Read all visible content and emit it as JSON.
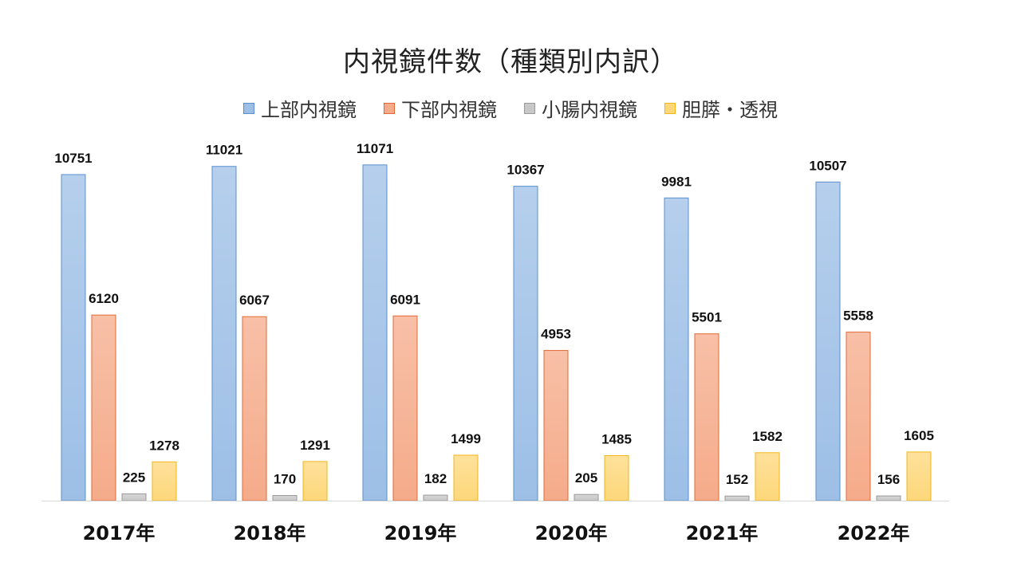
{
  "chart_data": {
    "type": "bar",
    "title": "内視鏡件数（種類別内訳）",
    "xlabel": "",
    "ylabel": "",
    "categories": [
      "2017年",
      "2018年",
      "2019年",
      "2020年",
      "2021年",
      "2022年"
    ],
    "series": [
      {
        "name": "上部内視鏡",
        "values": [
          10751,
          11021,
          11071,
          10367,
          9981,
          10507
        ],
        "color": "#9dbfe6",
        "stroke": "#5b8fcf"
      },
      {
        "name": "下部内視鏡",
        "values": [
          6120,
          6067,
          6091,
          4953,
          5501,
          5558
        ],
        "color": "#f5ab8a",
        "stroke": "#e06a36"
      },
      {
        "name": "小腸内視鏡",
        "values": [
          225,
          170,
          182,
          205,
          152,
          156
        ],
        "color": "#c8c8c8",
        "stroke": "#9a9a9a"
      },
      {
        "name": "胆膵・透視",
        "values": [
          1278,
          1291,
          1499,
          1485,
          1582,
          1605
        ],
        "color": "#fdd77a",
        "stroke": "#f2b61b"
      }
    ],
    "ylim": [
      0,
      10751
    ],
    "grid": false,
    "legend_position": "top"
  }
}
